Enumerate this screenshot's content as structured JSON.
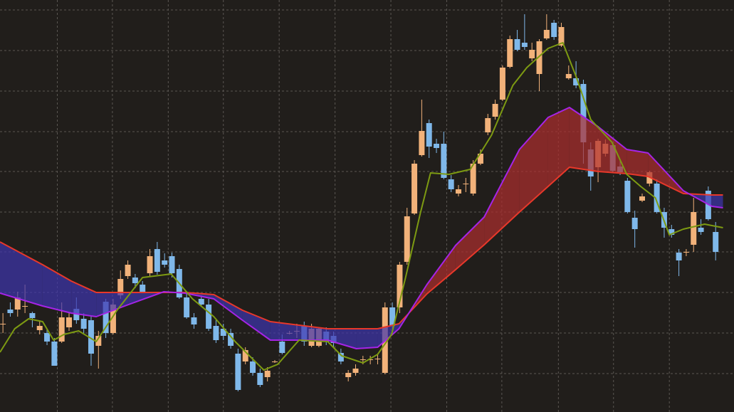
{
  "chart_data": {
    "type": "candlestick",
    "background": "#211e1b",
    "grid": true,
    "grid_color": "#5a5652",
    "xlim": [
      -0.4,
      99.5
    ],
    "ylim": [
      0,
      579
    ],
    "xticks": [
      7.4,
      14.9,
      22.5,
      30,
      37.6,
      45.2,
      52.8,
      60.4,
      67.9,
      75.6,
      83.1,
      90.7
    ],
    "yticks": [
      54,
      111,
      168,
      225,
      281,
      338,
      394,
      451,
      508,
      565
    ],
    "candles": {
      "up_color": "#f2b27a",
      "down_color": "#7fb8ea",
      "x": [
        0,
        1,
        2,
        3,
        4,
        5,
        6,
        7,
        8,
        9,
        10,
        11,
        12,
        13,
        14,
        15,
        16,
        17,
        18,
        19,
        20,
        21,
        22,
        23,
        24,
        25,
        26,
        27,
        28,
        29,
        30,
        31,
        32,
        33,
        34,
        35,
        36,
        37,
        38,
        39,
        40,
        41,
        42,
        43,
        44,
        45,
        46,
        47,
        48,
        49,
        50,
        51,
        52,
        53,
        54,
        55,
        56,
        57,
        58,
        59,
        60,
        61,
        62,
        63,
        64,
        65,
        66,
        67,
        68,
        69,
        70,
        71,
        72,
        73,
        74,
        75,
        76,
        77,
        78,
        79,
        80,
        81,
        82,
        83,
        84,
        85,
        86,
        87,
        88,
        89,
        90,
        91,
        92,
        93,
        94,
        95,
        96,
        97
      ],
      "open": [
        124,
        144,
        144,
        149,
        139,
        115,
        111,
        99,
        99,
        119,
        145,
        131,
        129,
        93,
        155,
        111,
        164,
        191,
        189,
        179,
        195,
        229,
        213,
        219,
        201,
        161,
        133,
        159,
        151,
        121,
        117,
        111,
        82,
        71,
        71,
        55,
        49,
        71,
        99,
        111,
        114,
        121,
        93,
        93,
        113,
        107,
        83,
        49,
        55,
        74,
        74,
        75,
        55,
        147,
        147,
        211,
        279,
        361,
        406,
        377,
        377,
        327,
        307,
        321,
        307,
        349,
        393,
        415,
        439,
        485,
        524,
        519,
        497,
        475,
        525,
        547,
        515,
        469,
        469,
        461,
        369,
        344,
        363,
        375,
        345,
        325,
        273,
        297,
        321,
        321,
        281,
        257,
        224,
        225,
        235,
        259,
        311,
        253
      ],
      "high": [
        139,
        154,
        169,
        179,
        141,
        129,
        117,
        104,
        154,
        139,
        161,
        139,
        134,
        114,
        159,
        159,
        199,
        213,
        194,
        184,
        229,
        239,
        223,
        224,
        207,
        169,
        139,
        164,
        159,
        129,
        124,
        117,
        89,
        91,
        77,
        61,
        63,
        73,
        109,
        114,
        124,
        127,
        124,
        119,
        119,
        113,
        89,
        59,
        67,
        79,
        79,
        81,
        154,
        154,
        211,
        287,
        354,
        439,
        411,
        384,
        394,
        333,
        319,
        329,
        354,
        369,
        419,
        439,
        487,
        529,
        537,
        559,
        519,
        524,
        559,
        551,
        547,
        487,
        493,
        467,
        379,
        384,
        383,
        379,
        353,
        329,
        283,
        307,
        339,
        327,
        287,
        263,
        229,
        229,
        301,
        271,
        317,
        267
      ],
      "low": [
        111,
        134,
        134,
        139,
        119,
        109,
        94,
        65,
        97,
        114,
        124,
        109,
        65,
        61,
        104,
        109,
        159,
        187,
        174,
        167,
        191,
        193,
        203,
        189,
        159,
        131,
        117,
        149,
        114,
        97,
        101,
        89,
        29,
        67,
        51,
        35,
        43,
        69,
        81,
        109,
        104,
        93,
        91,
        91,
        94,
        91,
        67,
        43,
        51,
        67,
        67,
        67,
        53,
        117,
        139,
        207,
        277,
        359,
        357,
        364,
        327,
        309,
        303,
        309,
        304,
        347,
        389,
        411,
        437,
        483,
        507,
        509,
        493,
        451,
        523,
        523,
        513,
        467,
        455,
        349,
        311,
        323,
        359,
        337,
        333,
        279,
        231,
        295,
        317,
        279,
        245,
        245,
        191,
        219,
        225,
        249,
        269,
        213
      ],
      "close": [
        124,
        139,
        161,
        149,
        132,
        121,
        99,
        65,
        133,
        133,
        129,
        117,
        82,
        107,
        111,
        151,
        187,
        207,
        181,
        169,
        219,
        197,
        207,
        195,
        161,
        133,
        123,
        151,
        117,
        101,
        107,
        93,
        31,
        87,
        55,
        38,
        58,
        71,
        83,
        111,
        114,
        99,
        117,
        117,
        99,
        97,
        71,
        55,
        61,
        74,
        74,
        75,
        147,
        121,
        207,
        275,
        349,
        395,
        373,
        371,
        329,
        313,
        313,
        321,
        349,
        363,
        413,
        433,
        484,
        524,
        509,
        513,
        509,
        521,
        537,
        527,
        541,
        475,
        459,
        379,
        331,
        381,
        377,
        339,
        337,
        281,
        257,
        303,
        337,
        281,
        259,
        249,
        213,
        225,
        281,
        253,
        271,
        225
      ]
    },
    "series": [
      {
        "color": "#7d9a12",
        "x": [
          -0.4,
          1.6,
          3.5,
          5.4,
          6.9,
          8.3,
          10.3,
          12.7,
          15.6,
          19,
          22.9,
          25.8,
          28.7,
          31.6,
          35.5,
          37.4,
          40.3,
          44.2,
          46.1,
          49,
          51,
          52.9,
          54.8,
          56.8,
          58.2,
          60.7,
          63.6,
          66.5,
          69.4,
          71.3,
          74.2,
          76.2,
          78.1,
          80,
          82.9,
          84.9,
          86.8,
          88.8,
          90.7,
          92.6,
          95.5,
          98
        ],
        "values": [
          84,
          117,
          131,
          127,
          101,
          109,
          114,
          99,
          144,
          189,
          194,
          159,
          134,
          99,
          59,
          67,
          101,
          99,
          79,
          69,
          81,
          109,
          189,
          279,
          336,
          334,
          341,
          389,
          459,
          484,
          511,
          519,
          469,
          411,
          379,
          334,
          317,
          301,
          249,
          257,
          264,
          259
        ]
      },
      {
        "color": "#a524e6",
        "x": [
          -0.4,
          5.4,
          9.3,
          12.7,
          17.1,
          21.9,
          24.8,
          28.7,
          32.6,
          36.4,
          44.2,
          48.1,
          51,
          53.9,
          57.7,
          61.6,
          65.5,
          70.3,
          74.2,
          77.1,
          81,
          84.9,
          87.8,
          92.6,
          96.5,
          98
        ],
        "values": [
          167,
          149,
          139,
          134,
          151,
          169,
          167,
          159,
          129,
          101,
          101,
          89,
          91,
          117,
          179,
          234,
          274,
          369,
          414,
          428,
          401,
          369,
          364,
          311,
          289,
          287
        ]
      },
      {
        "color": "#e8382a",
        "x": [
          -0.4,
          5.4,
          9.3,
          12.7,
          17.1,
          21.9,
          24.8,
          28.7,
          32.6,
          36.4,
          44.2,
          48.1,
          51,
          53.9,
          57.7,
          61.6,
          65.5,
          70.3,
          74.2,
          77.1,
          81,
          84.9,
          87.8,
          92.6,
          96.5,
          98
        ],
        "values": [
          239,
          207,
          184,
          168,
          168,
          168,
          168,
          165,
          143,
          127,
          117,
          117,
          117,
          124,
          166,
          200,
          235,
          281,
          317,
          344,
          338,
          335,
          331,
          307,
          305,
          305
        ]
      }
    ],
    "cloud": {
      "series": [
        1,
        2
      ],
      "colors": [
        "rgba(175,45,45,0.7)",
        "rgba(62,52,175,0.7)"
      ]
    }
  }
}
